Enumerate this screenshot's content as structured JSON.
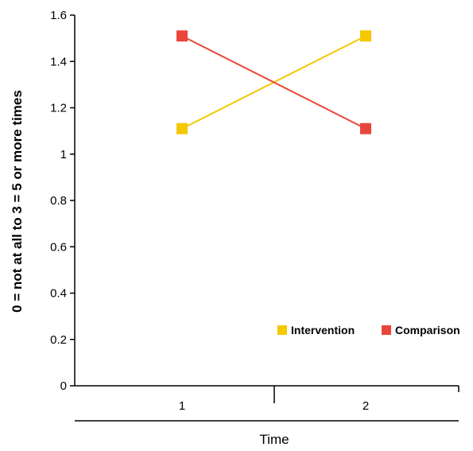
{
  "chart_data": {
    "type": "line",
    "categories": [
      "1",
      "2"
    ],
    "series": [
      {
        "name": "Intervention",
        "values": [
          1.11,
          1.51
        ],
        "color": "#f5c800"
      },
      {
        "name": "Comparison",
        "values": [
          1.51,
          1.11
        ],
        "color": "#e8463a"
      }
    ],
    "title": "",
    "xlabel": "Time",
    "ylabel": "0 = not at all to 3 = 5 or more times",
    "ylim": [
      0,
      1.6
    ],
    "yticks": [
      "0",
      "0.2",
      "0.4",
      "0.6",
      "0.8",
      "1",
      "1.2",
      "1.4",
      "1.6"
    ],
    "grid": false,
    "legend_position": "bottom-right",
    "marker": "square"
  }
}
